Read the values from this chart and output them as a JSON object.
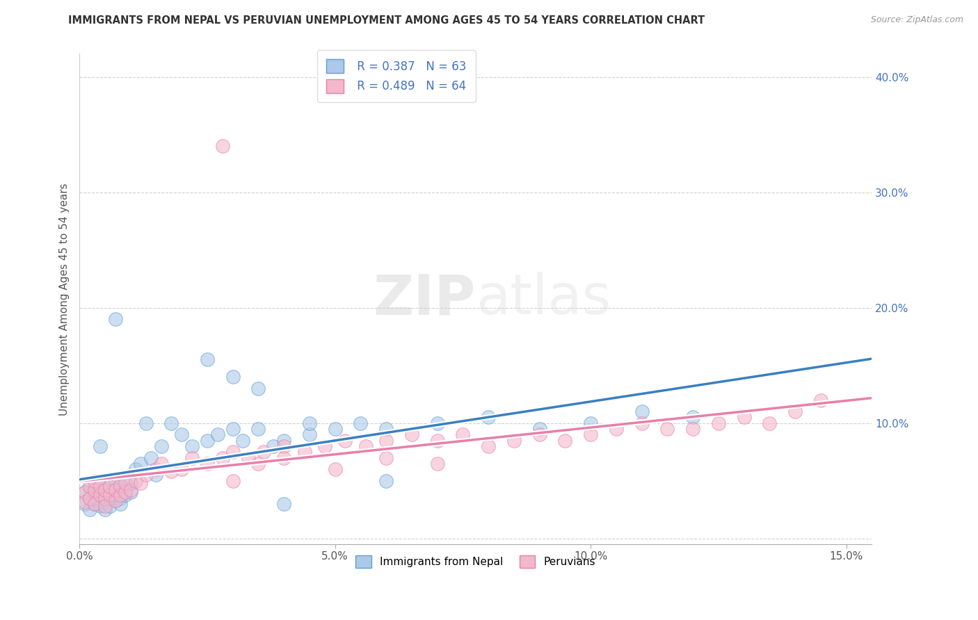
{
  "title": "IMMIGRANTS FROM NEPAL VS PERUVIAN UNEMPLOYMENT AMONG AGES 45 TO 54 YEARS CORRELATION CHART",
  "source": "Source: ZipAtlas.com",
  "ylabel": "Unemployment Among Ages 45 to 54 years",
  "xlim": [
    0.0,
    0.155
  ],
  "ylim": [
    -0.005,
    0.42
  ],
  "xticks": [
    0.0,
    0.05,
    0.1,
    0.15
  ],
  "xtick_labels": [
    "0.0%",
    "5.0%",
    "10.0%",
    "15.0%"
  ],
  "yticks": [
    0.0,
    0.1,
    0.2,
    0.3,
    0.4
  ],
  "ytick_labels": [
    "",
    "10.0%",
    "20.0%",
    "30.0%",
    "40.0%"
  ],
  "legend_R1": "R = 0.387",
  "legend_N1": "N = 63",
  "legend_R2": "R = 0.489",
  "legend_N2": "N = 64",
  "color_nepal": "#adc8e8",
  "color_peru": "#f4b8cb",
  "color_nepal_edge": "#5a9fd4",
  "color_peru_edge": "#e87fa8",
  "color_trend_nepal": "#3a7fc1",
  "color_trend_peru": "#e87fa8",
  "watermark": "ZIPatlas",
  "background_color": "#ffffff",
  "grid_color": "#cccccc",
  "nepal_x": [
    0.001,
    0.001,
    0.002,
    0.002,
    0.002,
    0.003,
    0.003,
    0.003,
    0.004,
    0.004,
    0.004,
    0.005,
    0.005,
    0.005,
    0.005,
    0.006,
    0.006,
    0.006,
    0.007,
    0.007,
    0.007,
    0.007,
    0.008,
    0.008,
    0.008,
    0.009,
    0.009,
    0.01,
    0.01,
    0.011,
    0.012,
    0.013,
    0.014,
    0.015,
    0.016,
    0.018,
    0.02,
    0.022,
    0.025,
    0.027,
    0.03,
    0.032,
    0.035,
    0.038,
    0.04,
    0.045,
    0.05,
    0.055,
    0.06,
    0.07,
    0.08,
    0.09,
    0.1,
    0.11,
    0.12,
    0.025,
    0.03,
    0.035,
    0.04,
    0.045,
    0.06,
    0.007,
    0.004
  ],
  "nepal_y": [
    0.03,
    0.04,
    0.035,
    0.045,
    0.025,
    0.03,
    0.04,
    0.035,
    0.028,
    0.045,
    0.038,
    0.032,
    0.042,
    0.025,
    0.05,
    0.035,
    0.04,
    0.028,
    0.033,
    0.042,
    0.05,
    0.038,
    0.035,
    0.045,
    0.03,
    0.038,
    0.042,
    0.04,
    0.048,
    0.06,
    0.065,
    0.1,
    0.07,
    0.055,
    0.08,
    0.1,
    0.09,
    0.08,
    0.085,
    0.09,
    0.095,
    0.085,
    0.095,
    0.08,
    0.085,
    0.09,
    0.095,
    0.1,
    0.095,
    0.1,
    0.105,
    0.095,
    0.1,
    0.11,
    0.105,
    0.155,
    0.14,
    0.13,
    0.03,
    0.1,
    0.05,
    0.19,
    0.08
  ],
  "peru_x": [
    0.001,
    0.001,
    0.002,
    0.002,
    0.003,
    0.003,
    0.003,
    0.004,
    0.004,
    0.005,
    0.005,
    0.005,
    0.006,
    0.006,
    0.007,
    0.007,
    0.008,
    0.008,
    0.009,
    0.009,
    0.01,
    0.011,
    0.012,
    0.013,
    0.015,
    0.016,
    0.018,
    0.02,
    0.022,
    0.025,
    0.028,
    0.03,
    0.033,
    0.036,
    0.04,
    0.044,
    0.048,
    0.052,
    0.056,
    0.06,
    0.065,
    0.07,
    0.075,
    0.08,
    0.085,
    0.09,
    0.095,
    0.1,
    0.105,
    0.11,
    0.115,
    0.12,
    0.125,
    0.13,
    0.135,
    0.14,
    0.145,
    0.03,
    0.035,
    0.04,
    0.05,
    0.06,
    0.07,
    0.028
  ],
  "peru_y": [
    0.04,
    0.032,
    0.045,
    0.035,
    0.042,
    0.03,
    0.05,
    0.038,
    0.045,
    0.035,
    0.042,
    0.028,
    0.038,
    0.045,
    0.033,
    0.042,
    0.038,
    0.046,
    0.04,
    0.048,
    0.042,
    0.05,
    0.048,
    0.055,
    0.06,
    0.065,
    0.058,
    0.06,
    0.07,
    0.065,
    0.07,
    0.075,
    0.07,
    0.075,
    0.08,
    0.075,
    0.08,
    0.085,
    0.08,
    0.085,
    0.09,
    0.085,
    0.09,
    0.08,
    0.085,
    0.09,
    0.085,
    0.09,
    0.095,
    0.1,
    0.095,
    0.095,
    0.1,
    0.105,
    0.1,
    0.11,
    0.12,
    0.05,
    0.065,
    0.07,
    0.06,
    0.07,
    0.065,
    0.34
  ]
}
